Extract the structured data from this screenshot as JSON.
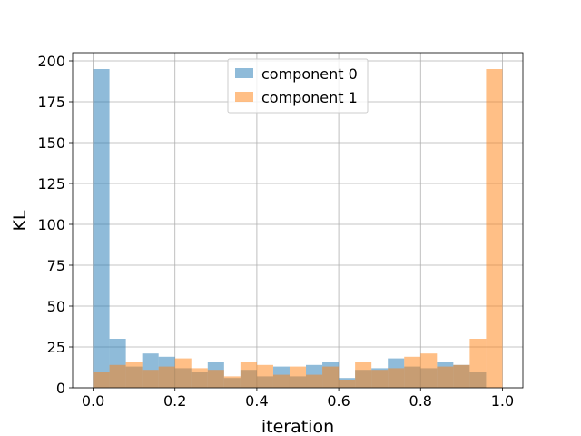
{
  "chart_data": {
    "type": "bar",
    "title": "",
    "xlabel": "iteration",
    "ylabel": "KL",
    "xlim": [
      -0.05,
      1.05
    ],
    "ylim": [
      0,
      205
    ],
    "grid": true,
    "legend_position": "top-center",
    "x_ticks": [
      "0.0",
      "0.2",
      "0.4",
      "0.6",
      "0.8",
      "1.0"
    ],
    "y_ticks": [
      "0",
      "25",
      "50",
      "75",
      "100",
      "125",
      "150",
      "175",
      "200"
    ],
    "bin_start": 0.0,
    "bin_width": 0.04,
    "series": [
      {
        "name": "component 0",
        "color": "#1f77b4",
        "opacity": 0.5,
        "values": [
          195,
          30,
          13,
          21,
          19,
          12,
          10,
          16,
          6,
          11,
          7,
          13,
          7,
          14,
          16,
          6,
          11,
          12,
          18,
          13,
          12,
          16,
          14,
          10,
          0
        ]
      },
      {
        "name": "component 1",
        "color": "#ff7f0e",
        "opacity": 0.5,
        "values": [
          10,
          14,
          16,
          11,
          13,
          18,
          12,
          11,
          7,
          16,
          14,
          8,
          13,
          8,
          13,
          5,
          16,
          11,
          12,
          19,
          21,
          13,
          14,
          30,
          195
        ]
      }
    ]
  }
}
